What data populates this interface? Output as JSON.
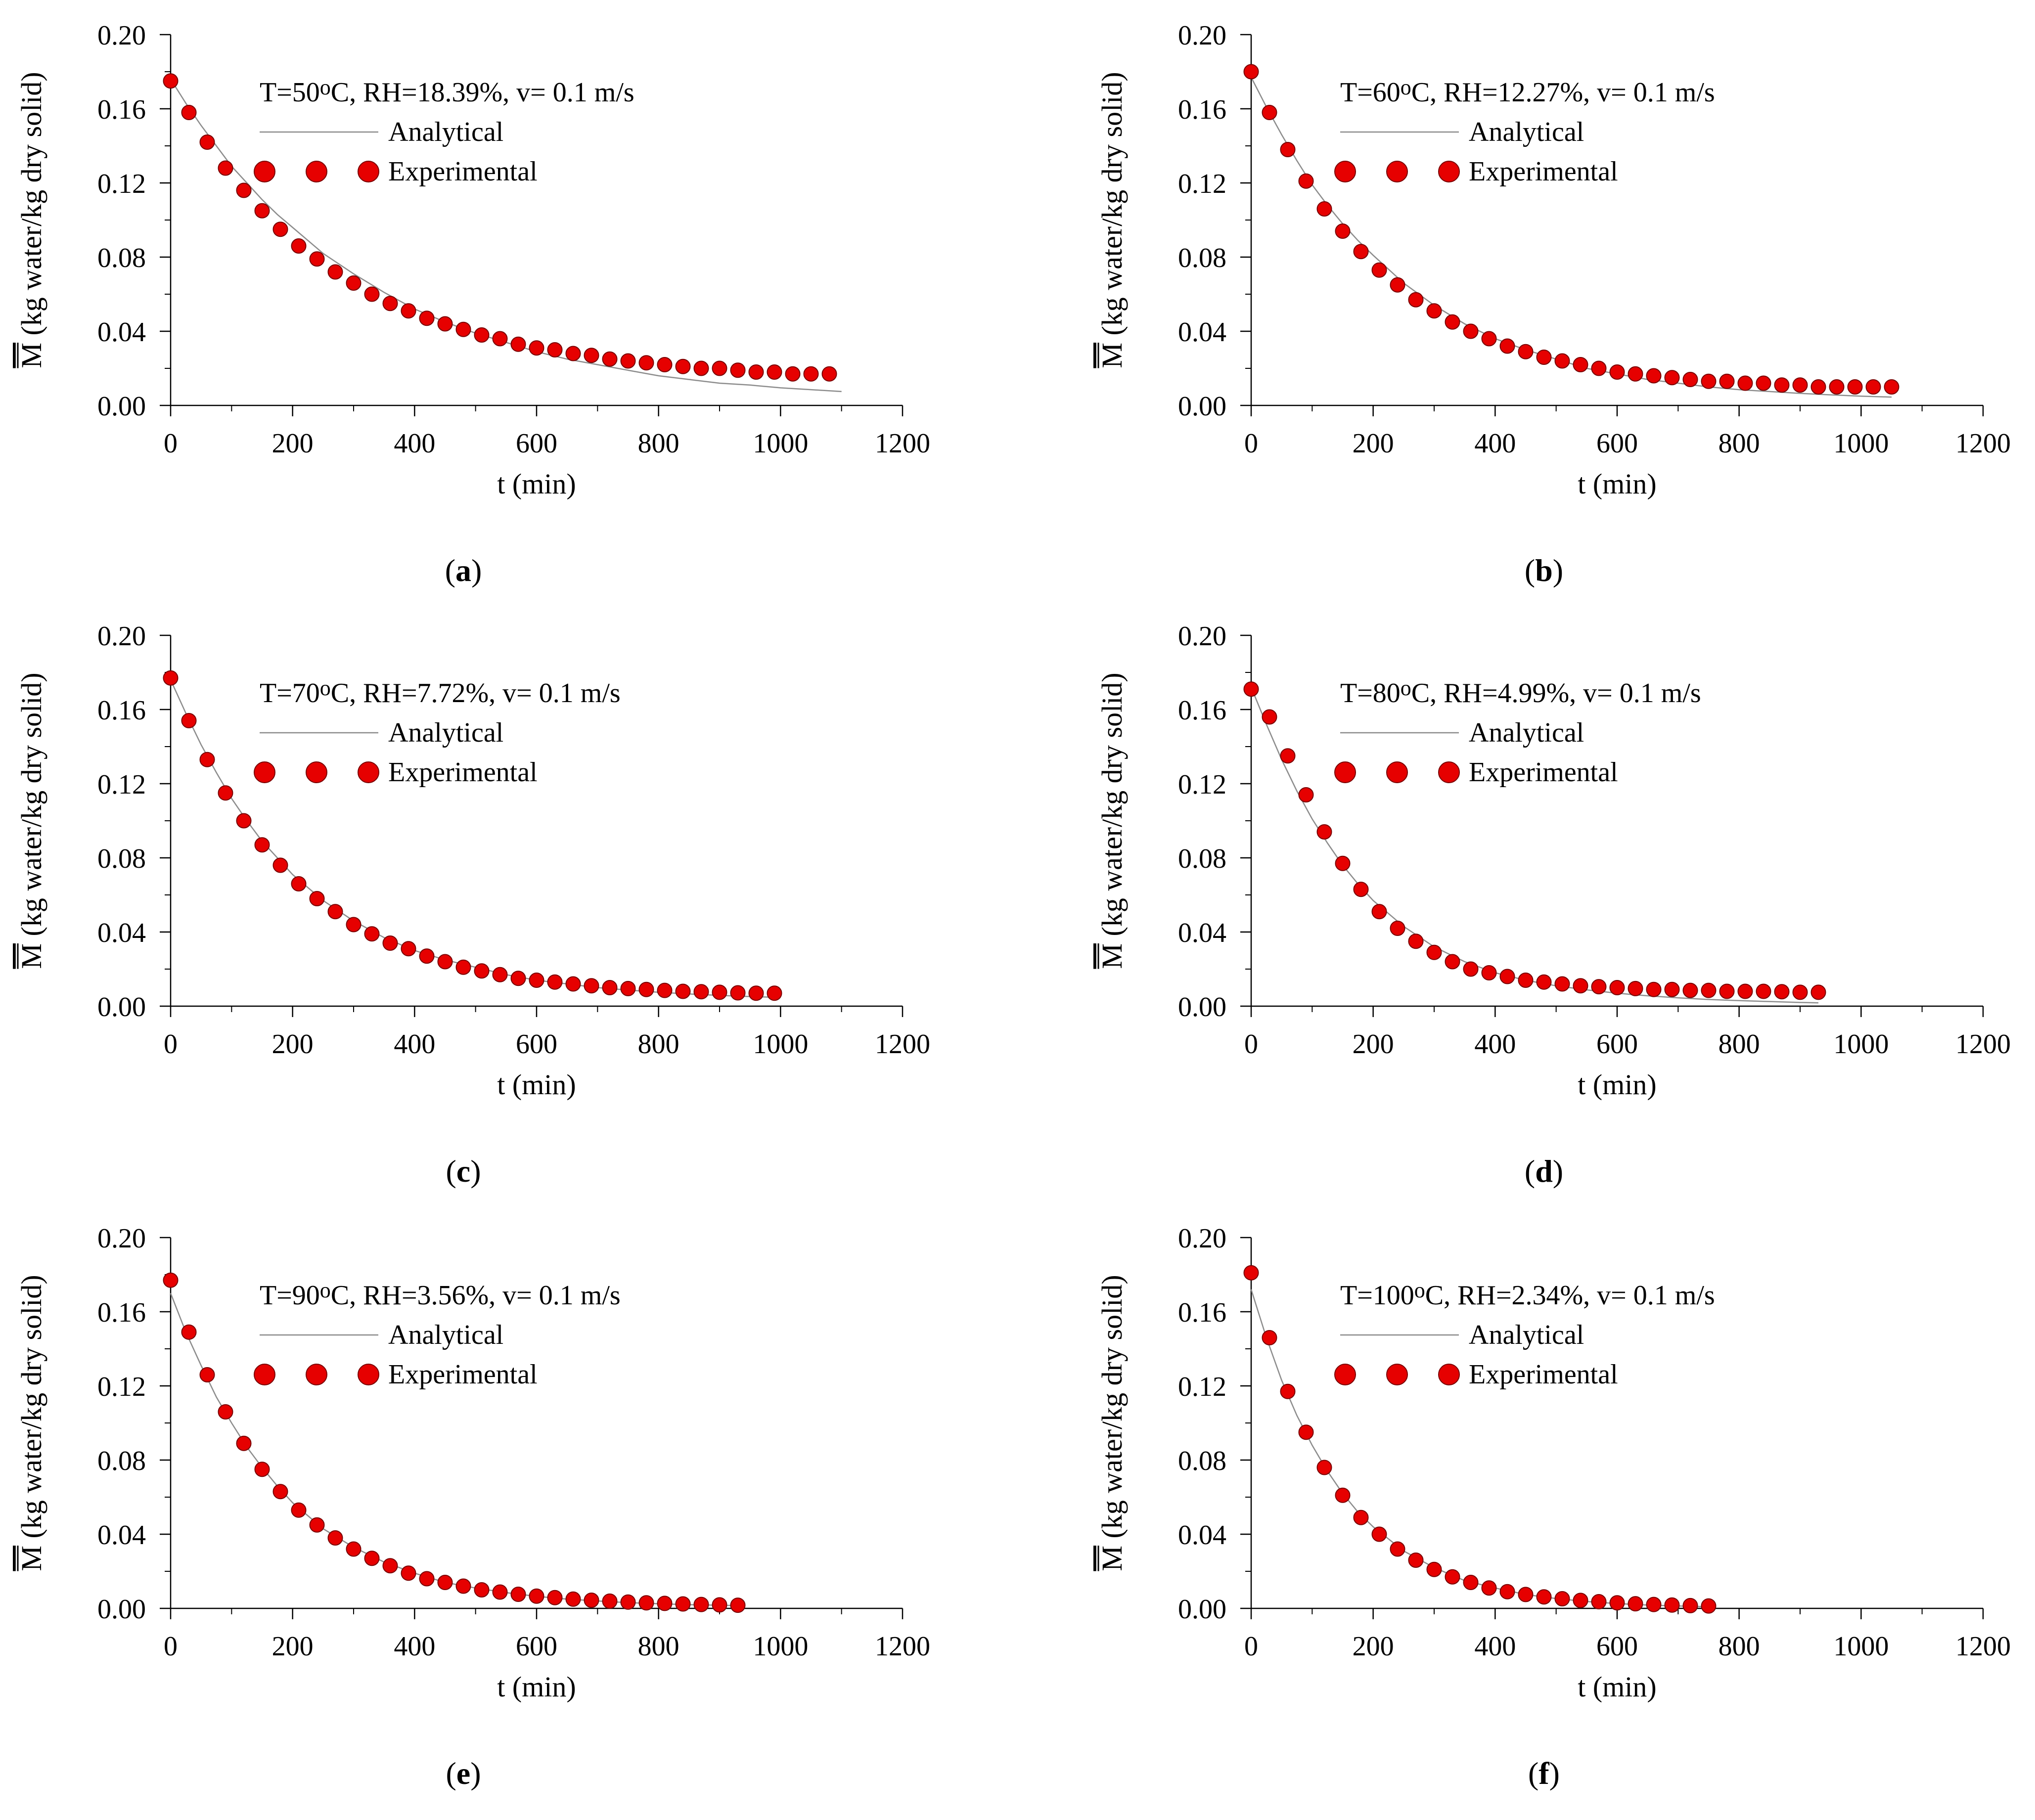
{
  "figure": {
    "panel_label_open": "(",
    "panel_label_close": ")"
  },
  "colors": {
    "analytical_line": "#8c8c8c",
    "experimental_marker": "#e60000",
    "marker_edge": "#7a0000",
    "axis": "#000000"
  },
  "chart_data": [
    {
      "type": "scatter",
      "panel": "a",
      "annotation": "T=50⁰C, RH=18.39%, v= 0.1 m/s",
      "annotation_prefix": "T=50",
      "annotation_sup": "o",
      "annotation_suffix": "C, RH=18.39%, v= 0.1 m/s",
      "xlabel": "t (min)",
      "ylabel_bar": "M",
      "ylabel_rest": " (kg water/kg dry solid)",
      "xlim": [
        0,
        1200
      ],
      "ylim": [
        0,
        0.2
      ],
      "x_ticks": [
        "0",
        "200",
        "400",
        "600",
        "800",
        "1000",
        "1200"
      ],
      "y_ticks": [
        "0.00",
        "0.04",
        "0.08",
        "0.12",
        "0.16",
        "0.20"
      ],
      "legend": [
        "Analytical",
        "Experimental"
      ],
      "series": [
        {
          "name": "Analytical",
          "kind": "line",
          "x": [
            0,
            25,
            50,
            75,
            100,
            125,
            150,
            175,
            200,
            250,
            300,
            350,
            400,
            450,
            500,
            550,
            600,
            650,
            700,
            750,
            800,
            850,
            900,
            950,
            1000,
            1050,
            1100
          ],
          "y": [
            0.176,
            0.163,
            0.151,
            0.14,
            0.129,
            0.12,
            0.111,
            0.103,
            0.096,
            0.082,
            0.071,
            0.061,
            0.052,
            0.045,
            0.039,
            0.034,
            0.029,
            0.025,
            0.022,
            0.019,
            0.016,
            0.014,
            0.012,
            0.011,
            0.0095,
            0.0085,
            0.0075
          ]
        },
        {
          "name": "Experimental",
          "kind": "scatter",
          "x": [
            0,
            30,
            60,
            90,
            120,
            150,
            180,
            210,
            240,
            270,
            300,
            330,
            360,
            390,
            420,
            450,
            480,
            510,
            540,
            570,
            600,
            630,
            660,
            690,
            720,
            750,
            780,
            810,
            840,
            870,
            900,
            930,
            960,
            990,
            1020,
            1050,
            1080
          ],
          "y": [
            0.175,
            0.158,
            0.142,
            0.128,
            0.116,
            0.105,
            0.095,
            0.086,
            0.079,
            0.072,
            0.066,
            0.06,
            0.055,
            0.051,
            0.047,
            0.044,
            0.041,
            0.038,
            0.036,
            0.033,
            0.031,
            0.03,
            0.028,
            0.027,
            0.025,
            0.024,
            0.023,
            0.022,
            0.021,
            0.02,
            0.02,
            0.019,
            0.018,
            0.018,
            0.017,
            0.017,
            0.017
          ]
        }
      ]
    },
    {
      "type": "scatter",
      "panel": "b",
      "annotation": "T=60⁰C, RH=12.27%, v= 0.1 m/s",
      "annotation_prefix": "T=60",
      "annotation_sup": "o",
      "annotation_suffix": "C, RH=12.27%, v= 0.1 m/s",
      "xlabel": "t (min)",
      "ylabel_bar": "M",
      "ylabel_rest": " (kg water/kg dry solid)",
      "xlim": [
        0,
        1200
      ],
      "ylim": [
        0,
        0.2
      ],
      "x_ticks": [
        "0",
        "200",
        "400",
        "600",
        "800",
        "1000",
        "1200"
      ],
      "y_ticks": [
        "0.00",
        "0.04",
        "0.08",
        "0.12",
        "0.16",
        "0.20"
      ],
      "legend": [
        "Analytical",
        "Experimental"
      ],
      "series": [
        {
          "name": "Analytical",
          "kind": "line",
          "x": [
            0,
            25,
            50,
            75,
            100,
            125,
            150,
            175,
            200,
            250,
            300,
            350,
            400,
            450,
            500,
            550,
            600,
            650,
            700,
            750,
            800,
            850,
            900,
            950,
            1000,
            1050
          ],
          "y": [
            0.177,
            0.161,
            0.146,
            0.132,
            0.119,
            0.108,
            0.098,
            0.089,
            0.081,
            0.066,
            0.054,
            0.044,
            0.036,
            0.03,
            0.025,
            0.02,
            0.017,
            0.014,
            0.012,
            0.01,
            0.0085,
            0.0075,
            0.0065,
            0.0057,
            0.005,
            0.0045
          ]
        },
        {
          "name": "Experimental",
          "kind": "scatter",
          "x": [
            0,
            30,
            60,
            90,
            120,
            150,
            180,
            210,
            240,
            270,
            300,
            330,
            360,
            390,
            420,
            450,
            480,
            510,
            540,
            570,
            600,
            630,
            660,
            690,
            720,
            750,
            780,
            810,
            840,
            870,
            900,
            930,
            960,
            990,
            1020,
            1050
          ],
          "y": [
            0.18,
            0.158,
            0.138,
            0.121,
            0.106,
            0.094,
            0.083,
            0.073,
            0.065,
            0.057,
            0.051,
            0.045,
            0.04,
            0.036,
            0.032,
            0.029,
            0.026,
            0.024,
            0.022,
            0.02,
            0.018,
            0.017,
            0.016,
            0.015,
            0.014,
            0.013,
            0.013,
            0.012,
            0.012,
            0.011,
            0.011,
            0.01,
            0.01,
            0.01,
            0.01,
            0.01
          ]
        }
      ]
    },
    {
      "type": "scatter",
      "panel": "c",
      "annotation": "T=70⁰C, RH=7.72%, v= 0.1 m/s",
      "annotation_prefix": "T=70",
      "annotation_sup": "o",
      "annotation_suffix": "C, RH=7.72%, v= 0.1 m/s",
      "xlabel": "t (min)",
      "ylabel_bar": "M",
      "ylabel_rest": " (kg water/kg dry solid)",
      "xlim": [
        0,
        1200
      ],
      "ylim": [
        0,
        0.2
      ],
      "x_ticks": [
        "0",
        "200",
        "400",
        "600",
        "800",
        "1000",
        "1200"
      ],
      "y_ticks": [
        "0.00",
        "0.04",
        "0.08",
        "0.12",
        "0.16",
        "0.20"
      ],
      "legend": [
        "Analytical",
        "Experimental"
      ],
      "series": [
        {
          "name": "Analytical",
          "kind": "line",
          "x": [
            0,
            25,
            50,
            75,
            100,
            125,
            150,
            175,
            200,
            250,
            300,
            350,
            400,
            450,
            500,
            550,
            600,
            650,
            700,
            750,
            800,
            850,
            900,
            950,
            1000
          ],
          "y": [
            0.176,
            0.158,
            0.141,
            0.126,
            0.112,
            0.1,
            0.089,
            0.08,
            0.071,
            0.057,
            0.046,
            0.037,
            0.03,
            0.025,
            0.021,
            0.017,
            0.014,
            0.012,
            0.01,
            0.0087,
            0.0075,
            0.0066,
            0.0058,
            0.0052,
            0.0047
          ]
        },
        {
          "name": "Experimental",
          "kind": "scatter",
          "x": [
            0,
            30,
            60,
            90,
            120,
            150,
            180,
            210,
            240,
            270,
            300,
            330,
            360,
            390,
            420,
            450,
            480,
            510,
            540,
            570,
            600,
            630,
            660,
            690,
            720,
            750,
            780,
            810,
            840,
            870,
            900,
            930,
            960,
            990
          ],
          "y": [
            0.177,
            0.154,
            0.133,
            0.115,
            0.1,
            0.087,
            0.076,
            0.066,
            0.058,
            0.051,
            0.044,
            0.039,
            0.034,
            0.031,
            0.027,
            0.024,
            0.021,
            0.019,
            0.017,
            0.015,
            0.014,
            0.013,
            0.012,
            0.011,
            0.01,
            0.0095,
            0.009,
            0.0085,
            0.008,
            0.0078,
            0.0075,
            0.0072,
            0.007,
            0.007
          ]
        }
      ]
    },
    {
      "type": "scatter",
      "panel": "d",
      "annotation": "T=80⁰C, RH=4.99%, v= 0.1 m/s",
      "annotation_prefix": "T=80",
      "annotation_sup": "o",
      "annotation_suffix": "C, RH=4.99%, v= 0.1 m/s",
      "xlabel": "t (min)",
      "ylabel_bar": "M",
      "ylabel_rest": " (kg water/kg dry solid)",
      "xlim": [
        0,
        1200
      ],
      "ylim": [
        0,
        0.2
      ],
      "x_ticks": [
        "0",
        "200",
        "400",
        "600",
        "800",
        "1000",
        "1200"
      ],
      "y_ticks": [
        "0.00",
        "0.04",
        "0.08",
        "0.12",
        "0.16",
        "0.20"
      ],
      "legend": [
        "Analytical",
        "Experimental"
      ],
      "series": [
        {
          "name": "Analytical",
          "kind": "line",
          "x": [
            0,
            25,
            50,
            75,
            100,
            125,
            150,
            175,
            200,
            250,
            300,
            350,
            400,
            450,
            500,
            550,
            600,
            650,
            700,
            750,
            800,
            850,
            900,
            930
          ],
          "y": [
            0.172,
            0.152,
            0.133,
            0.116,
            0.101,
            0.088,
            0.076,
            0.066,
            0.057,
            0.043,
            0.032,
            0.024,
            0.018,
            0.014,
            0.011,
            0.0088,
            0.007,
            0.0056,
            0.0045,
            0.0036,
            0.003,
            0.0025,
            0.002,
            0.0018
          ]
        },
        {
          "name": "Experimental",
          "kind": "scatter",
          "x": [
            0,
            30,
            60,
            90,
            120,
            150,
            180,
            210,
            240,
            270,
            300,
            330,
            360,
            390,
            420,
            450,
            480,
            510,
            540,
            570,
            600,
            630,
            660,
            690,
            720,
            750,
            780,
            810,
            840,
            870,
            900,
            930
          ],
          "y": [
            0.171,
            0.156,
            0.135,
            0.114,
            0.094,
            0.077,
            0.063,
            0.051,
            0.042,
            0.035,
            0.029,
            0.024,
            0.02,
            0.018,
            0.016,
            0.014,
            0.013,
            0.012,
            0.011,
            0.0105,
            0.01,
            0.0095,
            0.009,
            0.009,
            0.0085,
            0.0085,
            0.008,
            0.008,
            0.008,
            0.0078,
            0.0075,
            0.0075
          ]
        }
      ]
    },
    {
      "type": "scatter",
      "panel": "e",
      "annotation": "T=90⁰C, RH=3.56%, v= 0.1 m/s",
      "annotation_prefix": "T=90",
      "annotation_sup": "o",
      "annotation_suffix": "C, RH=3.56%, v= 0.1 m/s",
      "xlabel": "t (min)",
      "ylabel_bar": "M",
      "ylabel_rest": " (kg water/kg dry solid)",
      "xlim": [
        0,
        1200
      ],
      "ylim": [
        0,
        0.2
      ],
      "x_ticks": [
        "0",
        "200",
        "400",
        "600",
        "800",
        "1000",
        "1200"
      ],
      "y_ticks": [
        "0.00",
        "0.04",
        "0.08",
        "0.12",
        "0.16",
        "0.20"
      ],
      "legend": [
        "Analytical",
        "Experimental"
      ],
      "series": [
        {
          "name": "Analytical",
          "kind": "line",
          "x": [
            0,
            25,
            50,
            75,
            100,
            125,
            150,
            175,
            200,
            250,
            300,
            350,
            400,
            450,
            500,
            550,
            600,
            650,
            700,
            750,
            800,
            850,
            900,
            930
          ],
          "y": [
            0.17,
            0.149,
            0.131,
            0.114,
            0.1,
            0.087,
            0.076,
            0.066,
            0.057,
            0.043,
            0.033,
            0.025,
            0.019,
            0.014,
            0.011,
            0.0085,
            0.0065,
            0.005,
            0.004,
            0.0031,
            0.0025,
            0.002,
            0.0017,
            0.0015
          ]
        },
        {
          "name": "Experimental",
          "kind": "scatter",
          "x": [
            0,
            30,
            60,
            90,
            120,
            150,
            180,
            210,
            240,
            270,
            300,
            330,
            360,
            390,
            420,
            450,
            480,
            510,
            540,
            570,
            600,
            630,
            660,
            690,
            720,
            750,
            780,
            810,
            840,
            870,
            900,
            930
          ],
          "y": [
            0.177,
            0.149,
            0.126,
            0.106,
            0.089,
            0.075,
            0.063,
            0.053,
            0.045,
            0.038,
            0.032,
            0.027,
            0.023,
            0.019,
            0.016,
            0.014,
            0.012,
            0.01,
            0.0088,
            0.0076,
            0.0066,
            0.0058,
            0.005,
            0.0044,
            0.0039,
            0.0034,
            0.003,
            0.0027,
            0.0024,
            0.0021,
            0.0019,
            0.0017
          ]
        }
      ]
    },
    {
      "type": "scatter",
      "panel": "f",
      "annotation": "T=100⁰C, RH=2.34%, v= 0.1 m/s",
      "annotation_prefix": "T=100",
      "annotation_sup": "o",
      "annotation_suffix": "C, RH=2.34%, v= 0.1 m/s",
      "xlabel": "t (min)",
      "ylabel_bar": "M",
      "ylabel_rest": " (kg water/kg dry solid)",
      "xlim": [
        0,
        1200
      ],
      "ylim": [
        0,
        0.2
      ],
      "x_ticks": [
        "0",
        "200",
        "400",
        "600",
        "800",
        "1000",
        "1200"
      ],
      "y_ticks": [
        "0.00",
        "0.04",
        "0.08",
        "0.12",
        "0.16",
        "0.20"
      ],
      "legend": [
        "Analytical",
        "Experimental"
      ],
      "series": [
        {
          "name": "Analytical",
          "kind": "line",
          "x": [
            0,
            25,
            50,
            75,
            100,
            125,
            150,
            175,
            200,
            250,
            300,
            350,
            400,
            450,
            500,
            550,
            600,
            650,
            700,
            750
          ],
          "y": [
            0.172,
            0.146,
            0.123,
            0.104,
            0.088,
            0.074,
            0.062,
            0.052,
            0.044,
            0.031,
            0.022,
            0.015,
            0.011,
            0.0075,
            0.0053,
            0.0037,
            0.0026,
            0.0018,
            0.0013,
            0.0009
          ]
        },
        {
          "name": "Experimental",
          "kind": "scatter",
          "x": [
            0,
            30,
            60,
            90,
            120,
            150,
            180,
            210,
            240,
            270,
            300,
            330,
            360,
            390,
            420,
            450,
            480,
            510,
            540,
            570,
            600,
            630,
            660,
            690,
            720,
            750
          ],
          "y": [
            0.181,
            0.146,
            0.117,
            0.095,
            0.076,
            0.061,
            0.049,
            0.04,
            0.032,
            0.026,
            0.021,
            0.017,
            0.014,
            0.011,
            0.009,
            0.0075,
            0.0062,
            0.0052,
            0.0043,
            0.0036,
            0.003,
            0.0025,
            0.0021,
            0.0018,
            0.0015,
            0.0013
          ]
        }
      ]
    }
  ]
}
